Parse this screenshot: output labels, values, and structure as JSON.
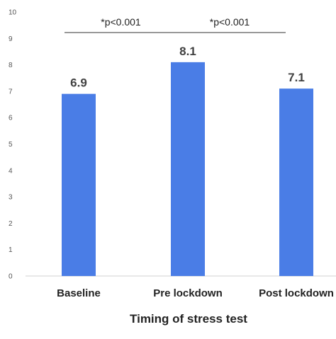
{
  "chart_data": {
    "type": "bar",
    "categories": [
      "Baseline",
      "Pre lockdown",
      "Post lockdown"
    ],
    "values": [
      6.9,
      8.1,
      7.1
    ],
    "value_labels": [
      "6.9",
      "8.1",
      "7.1"
    ],
    "xlabel": "Timing of stress test",
    "ylim": [
      0,
      10
    ],
    "yticks": [
      0,
      1,
      2,
      3,
      4,
      5,
      6,
      7,
      8,
      9,
      10
    ],
    "grid": false,
    "bar_color": "#4a7de6",
    "annotations": [
      {
        "text": "*p<0.001",
        "from_category": 0,
        "to_category": 1
      },
      {
        "text": "*p<0.001",
        "from_category": 1,
        "to_category": 2
      }
    ]
  }
}
